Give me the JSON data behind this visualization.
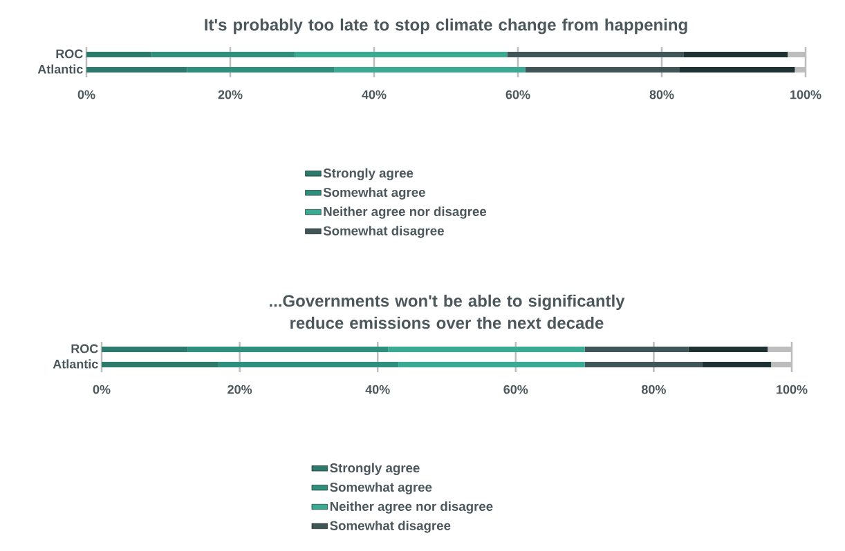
{
  "chart_data": [
    {
      "type": "bar",
      "orientation": "horizontal",
      "stacked": true,
      "title": "It's probably too late to stop climate change from happening",
      "categories": [
        "ROC",
        "Atlantic"
      ],
      "series": [
        {
          "name": "Strongly agree",
          "color": "#2b7a6b",
          "values": [
            9,
            14
          ]
        },
        {
          "name": "Somewhat agree",
          "color": "#2f8f7c",
          "values": [
            20,
            20.5
          ]
        },
        {
          "name": "Neither agree nor disagree",
          "color": "#3aaa93",
          "values": [
            29.5,
            26.5
          ]
        },
        {
          "name": "Somewhat disagree",
          "color": "#3f5558",
          "values": [
            24.5,
            21.5
          ]
        },
        {
          "color": "#1e3234",
          "values": [
            14.5,
            16
          ]
        },
        {
          "color": "#bdbdbd",
          "values": [
            2.5,
            1.5
          ]
        }
      ],
      "xlim": [
        0,
        100
      ],
      "xticks": [
        {
          "value": 0,
          "label": "0%"
        },
        {
          "value": 20,
          "label": "20%"
        },
        {
          "value": 40,
          "label": "40%"
        },
        {
          "value": 60,
          "label": "60%"
        },
        {
          "value": 80,
          "label": "80%"
        },
        {
          "value": 100,
          "label": "100%"
        }
      ],
      "grid": "x",
      "legend": "bottom"
    },
    {
      "type": "bar",
      "orientation": "horizontal",
      "stacked": true,
      "title": "...Governments won't be able to significantly reduce emissions over the next decade",
      "categories": [
        "ROC",
        "Atlantic"
      ],
      "series": [
        {
          "name": "Strongly agree",
          "color": "#2b7a6b",
          "values": [
            12.5,
            17
          ]
        },
        {
          "name": "Somewhat agree",
          "color": "#2f8f7c",
          "values": [
            29,
            26
          ]
        },
        {
          "name": "Neither agree nor disagree",
          "color": "#3aaa93",
          "values": [
            28.5,
            27
          ]
        },
        {
          "name": "Somewhat disagree",
          "color": "#3f5558",
          "values": [
            15,
            17
          ]
        },
        {
          "color": "#1e3234",
          "values": [
            11.5,
            10
          ]
        },
        {
          "color": "#bdbdbd",
          "values": [
            3.5,
            3
          ]
        }
      ],
      "xlim": [
        0,
        100
      ],
      "xticks": [
        {
          "value": 0,
          "label": "0%"
        },
        {
          "value": 20,
          "label": "20%"
        },
        {
          "value": 40,
          "label": "40%"
        },
        {
          "value": 60,
          "label": "60%"
        },
        {
          "value": 80,
          "label": "80%"
        },
        {
          "value": 100,
          "label": "100%"
        }
      ],
      "grid": "x",
      "legend": "bottom"
    }
  ]
}
